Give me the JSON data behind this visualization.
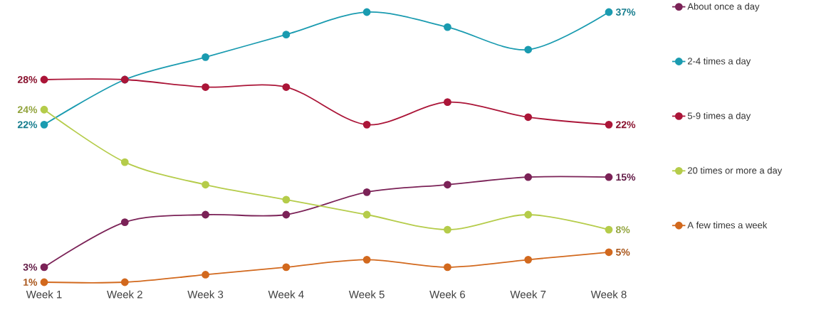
{
  "chart_data": {
    "type": "line",
    "categories": [
      "Week 1",
      "Week 2",
      "Week 3",
      "Week 4",
      "Week 5",
      "Week 6",
      "Week 7",
      "Week 8"
    ],
    "series": [
      {
        "name": "About once a day",
        "color": "#7b2257",
        "values": [
          3,
          9,
          10,
          10,
          13,
          14,
          15,
          15
        ],
        "value_labels": [
          "3%",
          null,
          null,
          null,
          null,
          null,
          null,
          "15%"
        ]
      },
      {
        "name": "2-4 times a day",
        "color": "#1a9bb0",
        "values": [
          22,
          28,
          31,
          34,
          37,
          35,
          32,
          37
        ],
        "value_labels": [
          "22%",
          null,
          null,
          null,
          null,
          null,
          null,
          "37%"
        ]
      },
      {
        "name": "5-9 times a day",
        "color": "#ab1538",
        "values": [
          28,
          28,
          27,
          27,
          22,
          25,
          23,
          22
        ],
        "value_labels": [
          "28%",
          null,
          null,
          null,
          null,
          null,
          null,
          "22%"
        ]
      },
      {
        "name": "20 times or more a day",
        "color": "#b5cc4a",
        "values": [
          24,
          17,
          14,
          12,
          10,
          8,
          10,
          8
        ],
        "value_labels": [
          "24%",
          null,
          null,
          null,
          null,
          null,
          null,
          "8%"
        ]
      },
      {
        "name": "A few times a week",
        "color": "#d2691e",
        "values": [
          1,
          1,
          2,
          3,
          4,
          3,
          4,
          5
        ],
        "value_labels": [
          "1%",
          null,
          null,
          null,
          null,
          null,
          null,
          "5%"
        ]
      }
    ],
    "tick_labels": "x",
    "legend": "right",
    "marker": "circle",
    "line_style": "solid",
    "grid": false
  }
}
